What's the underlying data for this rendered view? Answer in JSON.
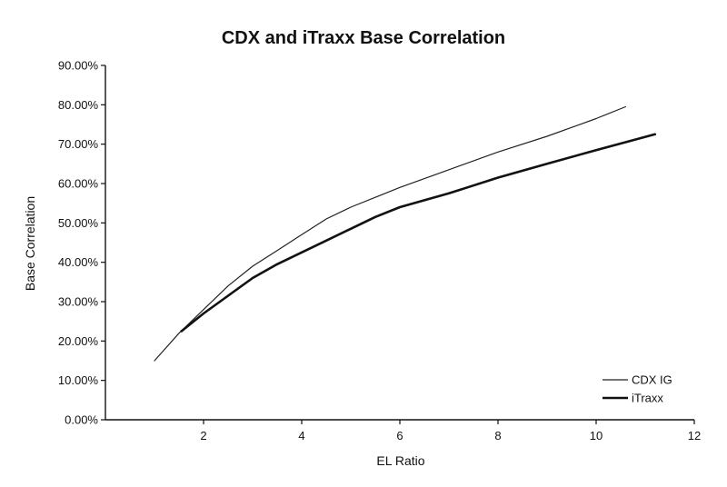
{
  "chart_data": {
    "type": "line",
    "title": "CDX and iTraxx Base Correlation",
    "xlabel": "EL Ratio",
    "ylabel": "Base Correlation",
    "xlim": [
      0,
      12
    ],
    "ylim": [
      0,
      0.9
    ],
    "x_ticks": [
      2,
      4,
      6,
      8,
      10,
      12
    ],
    "x_tick_labels": [
      "2",
      "4",
      "6",
      "8",
      "10",
      "12"
    ],
    "y_ticks": [
      0,
      0.1,
      0.2,
      0.3,
      0.4,
      0.5,
      0.6,
      0.7,
      0.8,
      0.9
    ],
    "y_tick_labels": [
      "0.00%",
      "10.00%",
      "20.00%",
      "30.00%",
      "40.00%",
      "50.00%",
      "60.00%",
      "70.00%",
      "80.00%",
      "90.00%"
    ],
    "grid": false,
    "legend_position": "bottom-right",
    "series": [
      {
        "name": "CDX IG",
        "color": "#222222",
        "x": [
          1.0,
          1.5,
          2.0,
          2.5,
          3.0,
          3.5,
          4.0,
          4.5,
          5.0,
          5.5,
          6.0,
          7.0,
          8.0,
          9.0,
          10.0,
          10.6
        ],
        "y": [
          0.15,
          0.22,
          0.28,
          0.34,
          0.39,
          0.43,
          0.47,
          0.51,
          0.54,
          0.565,
          0.59,
          0.635,
          0.68,
          0.72,
          0.765,
          0.795
        ]
      },
      {
        "name": "iTraxx",
        "color": "#111111",
        "x": [
          1.55,
          2.0,
          2.5,
          3.0,
          3.5,
          4.0,
          4.5,
          5.0,
          5.5,
          6.0,
          7.0,
          8.0,
          9.0,
          10.0,
          11.2
        ],
        "y": [
          0.225,
          0.27,
          0.315,
          0.36,
          0.395,
          0.425,
          0.455,
          0.485,
          0.515,
          0.54,
          0.575,
          0.615,
          0.65,
          0.685,
          0.725
        ]
      }
    ]
  }
}
